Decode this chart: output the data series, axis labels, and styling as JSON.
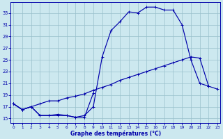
{
  "xlabel": "Graphe des températures (°C)",
  "background_color": "#cce8ef",
  "grid_color": "#99c0cc",
  "line_color": "#0000aa",
  "x_ticks": [
    0,
    1,
    2,
    3,
    4,
    5,
    6,
    7,
    8,
    9,
    10,
    11,
    12,
    13,
    14,
    15,
    16,
    17,
    18,
    19,
    20,
    21,
    22,
    23
  ],
  "y_ticks": [
    15,
    17,
    19,
    21,
    23,
    25,
    27,
    29,
    31,
    33
  ],
  "ylim": [
    14.2,
    34.8
  ],
  "xlim": [
    -0.3,
    23.3
  ],
  "series1_x": [
    0,
    1,
    2,
    3,
    4,
    5,
    6,
    7,
    8,
    9,
    10,
    11,
    12,
    13,
    14,
    15,
    16,
    17,
    18,
    19,
    20,
    21,
    22
  ],
  "series1_y": [
    17.5,
    16.5,
    17.0,
    15.5,
    15.5,
    15.7,
    15.5,
    15.2,
    15.5,
    17.0,
    25.5,
    30.0,
    31.5,
    33.2,
    33.0,
    34.0,
    34.0,
    33.5,
    33.5,
    31.0,
    25.0,
    21.0,
    20.5
  ],
  "series2_x": [
    0,
    1,
    2,
    3,
    4,
    5,
    6,
    7,
    8,
    9,
    10,
    11,
    12,
    13,
    14,
    15,
    16,
    17,
    18,
    19,
    20,
    21,
    22,
    23
  ],
  "series2_y": [
    17.5,
    16.5,
    17.0,
    17.5,
    18.0,
    18.0,
    18.5,
    18.8,
    19.2,
    19.8,
    20.3,
    20.8,
    21.5,
    22.0,
    22.5,
    23.0,
    23.5,
    24.0,
    24.5,
    25.0,
    25.5,
    25.3,
    20.5,
    20.0
  ],
  "series3_x": [
    0,
    1,
    2,
    3,
    4,
    5,
    6,
    7,
    8,
    9
  ],
  "series3_y": [
    17.5,
    16.5,
    17.0,
    15.5,
    15.5,
    15.5,
    15.5,
    15.2,
    15.2,
    19.3
  ]
}
